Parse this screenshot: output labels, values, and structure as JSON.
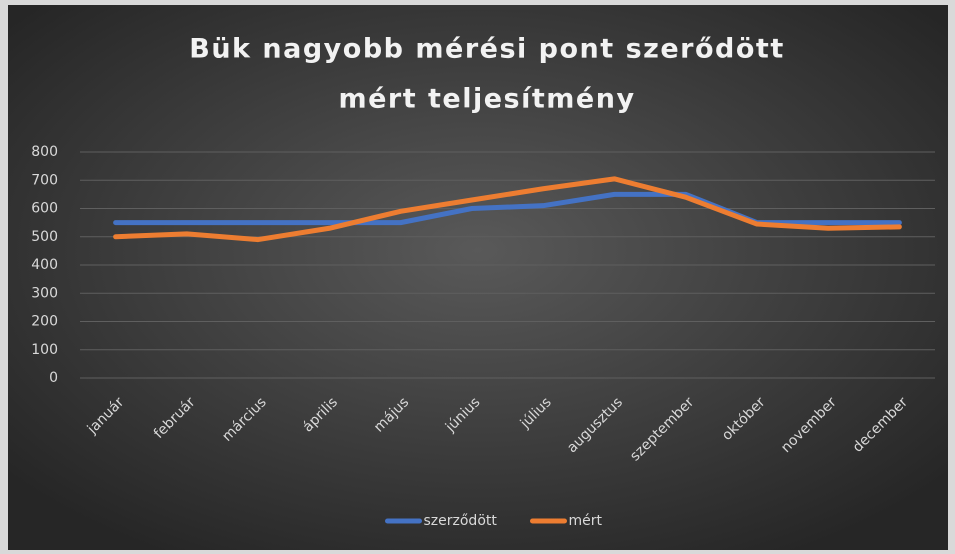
{
  "chart_data": {
    "type": "line",
    "title": [
      "Bük nagyobb mérési pont szerődött",
      "mért teljesítmény"
    ],
    "categories": [
      "január",
      "február",
      "március",
      "április",
      "május",
      "június",
      "július",
      "augusztus",
      "szeptember",
      "október",
      "november",
      "december"
    ],
    "series": [
      {
        "name": "szerződött",
        "color": "#4472c4",
        "values": [
          550,
          550,
          550,
          550,
          550,
          600,
          610,
          650,
          650,
          550,
          550,
          550
        ]
      },
      {
        "name": "mért",
        "color": "#ed7d31",
        "values": [
          500,
          510,
          490,
          530,
          590,
          630,
          670,
          705,
          640,
          545,
          530,
          535
        ]
      }
    ],
    "ylim": [
      0,
      800
    ],
    "yticks": [
      0,
      100,
      200,
      300,
      400,
      500,
      600,
      700,
      800
    ],
    "grid": true,
    "legend": "bottom"
  }
}
